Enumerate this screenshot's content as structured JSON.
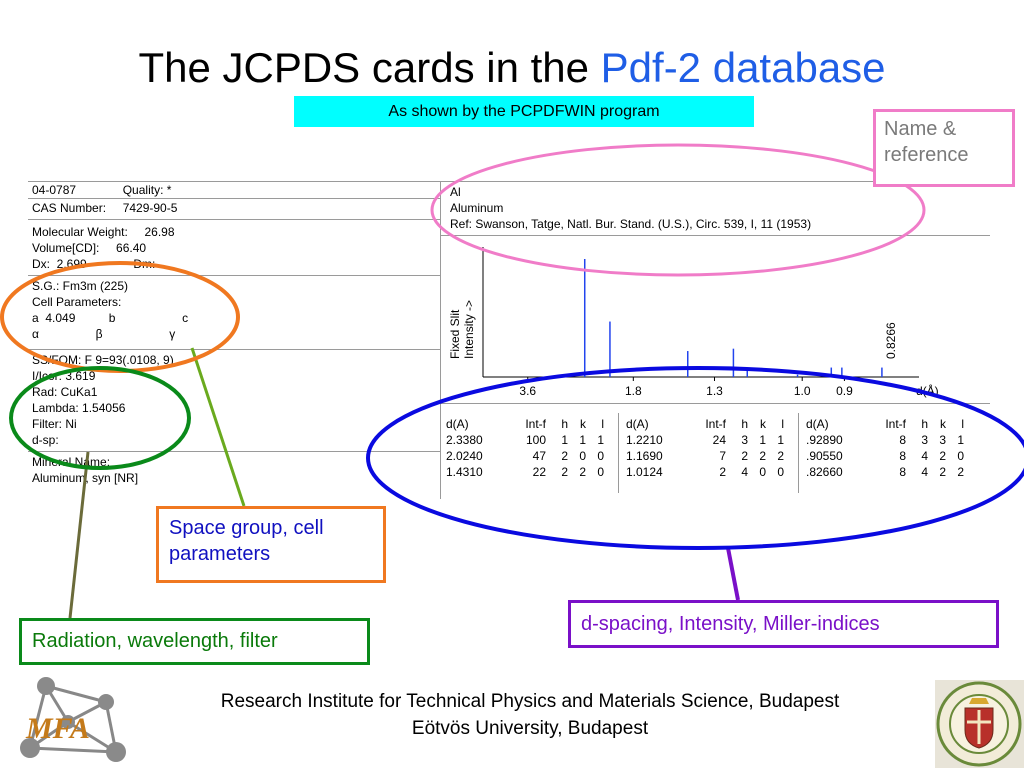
{
  "title": {
    "main": "The JCPDS cards in the ",
    "highlight": "Pdf-2 database"
  },
  "subtitle": "As shown by the PCPDFWIN program",
  "card": {
    "left_rows": [
      "04-0787              Quality: *",
      "CAS Number:     7429-90-5",
      "Molecular Weight:     26.98",
      "Volume[CD]:     66.40",
      "Dx:  2.699              Dm:",
      "S.G.: Fm3m (225)",
      "Cell Parameters:",
      "a  4.049          b                    c",
      "α                 β                    γ",
      "SS/FOM: F 9=93(.0108, 9)",
      "I/Icor: 3.619",
      "Rad: CuKa1",
      "Lambda: 1.54056",
      "Filter: Ni",
      "d-sp:",
      "Mineral Name:",
      "Aluminum, syn [NR]"
    ],
    "name_lines": [
      "Al",
      "Aluminum",
      "Ref: Swanson, Tatge, Natl. Bur. Stand. (U.S.), Circ. 539, I, 11 (1953)"
    ],
    "pattern": {
      "ylabel_line1": "Fixed  Slit",
      "ylabel_line2": "Intensity  ->",
      "xlabel": "d(Å)",
      "x_ticks": [
        "3.6",
        "1.8",
        "1.3",
        "1.0",
        "0.9"
      ],
      "peak_label": "0.8266",
      "chart_data": {
        "type": "bar",
        "x": [
          2.338,
          2.024,
          1.431,
          1.221,
          1.169,
          1.0124,
          0.9289,
          0.9055,
          0.8266
        ],
        "values": [
          100,
          47,
          22,
          24,
          7,
          2,
          8,
          8,
          8
        ],
        "ylim": [
          0,
          100
        ]
      }
    },
    "table": {
      "headers": [
        "d(A)",
        "Int-f",
        "h",
        "k",
        "l"
      ],
      "blocks": [
        [
          [
            "2.3380",
            "100",
            "1",
            "1",
            "1"
          ],
          [
            "2.0240",
            "47",
            "2",
            "0",
            "0"
          ],
          [
            "1.4310",
            "22",
            "2",
            "2",
            "0"
          ]
        ],
        [
          [
            "1.2210",
            "24",
            "3",
            "1",
            "1"
          ],
          [
            "1.1690",
            "7",
            "2",
            "2",
            "2"
          ],
          [
            "1.0124",
            "2",
            "4",
            "0",
            "0"
          ]
        ],
        [
          [
            ".92890",
            "8",
            "3",
            "3",
            "1"
          ],
          [
            ".90550",
            "8",
            "4",
            "2",
            "0"
          ],
          [
            ".82660",
            "8",
            "4",
            "2",
            "2"
          ]
        ]
      ]
    }
  },
  "callouts": {
    "name_ref": "Name &\nreference",
    "space_group": "Space group, cell\nparameters",
    "radiation": "Radiation, wavelength, filter",
    "dspacing": "d-spacing, Intensity, Miller-indices"
  },
  "footer": {
    "line1": "Research Institute for Technical Physics and Materials Science, Budapest",
    "line2": "Eötvös University, Budapest",
    "logo_text": "MFA",
    "seal_text": "UNIVERSITAS BUDAPESTINENSIS DE ROLANDO EÖTVÖS NOMINATA"
  },
  "colors": {
    "highlight": "#1f5ee6",
    "subtitle_bg": "#00ffff",
    "pink": "#f07cc8",
    "orange": "#f07820",
    "green": "#0a8a1a",
    "blue": "#0a0ae0",
    "purple": "#7a10c8",
    "peak": "#2244ee"
  }
}
